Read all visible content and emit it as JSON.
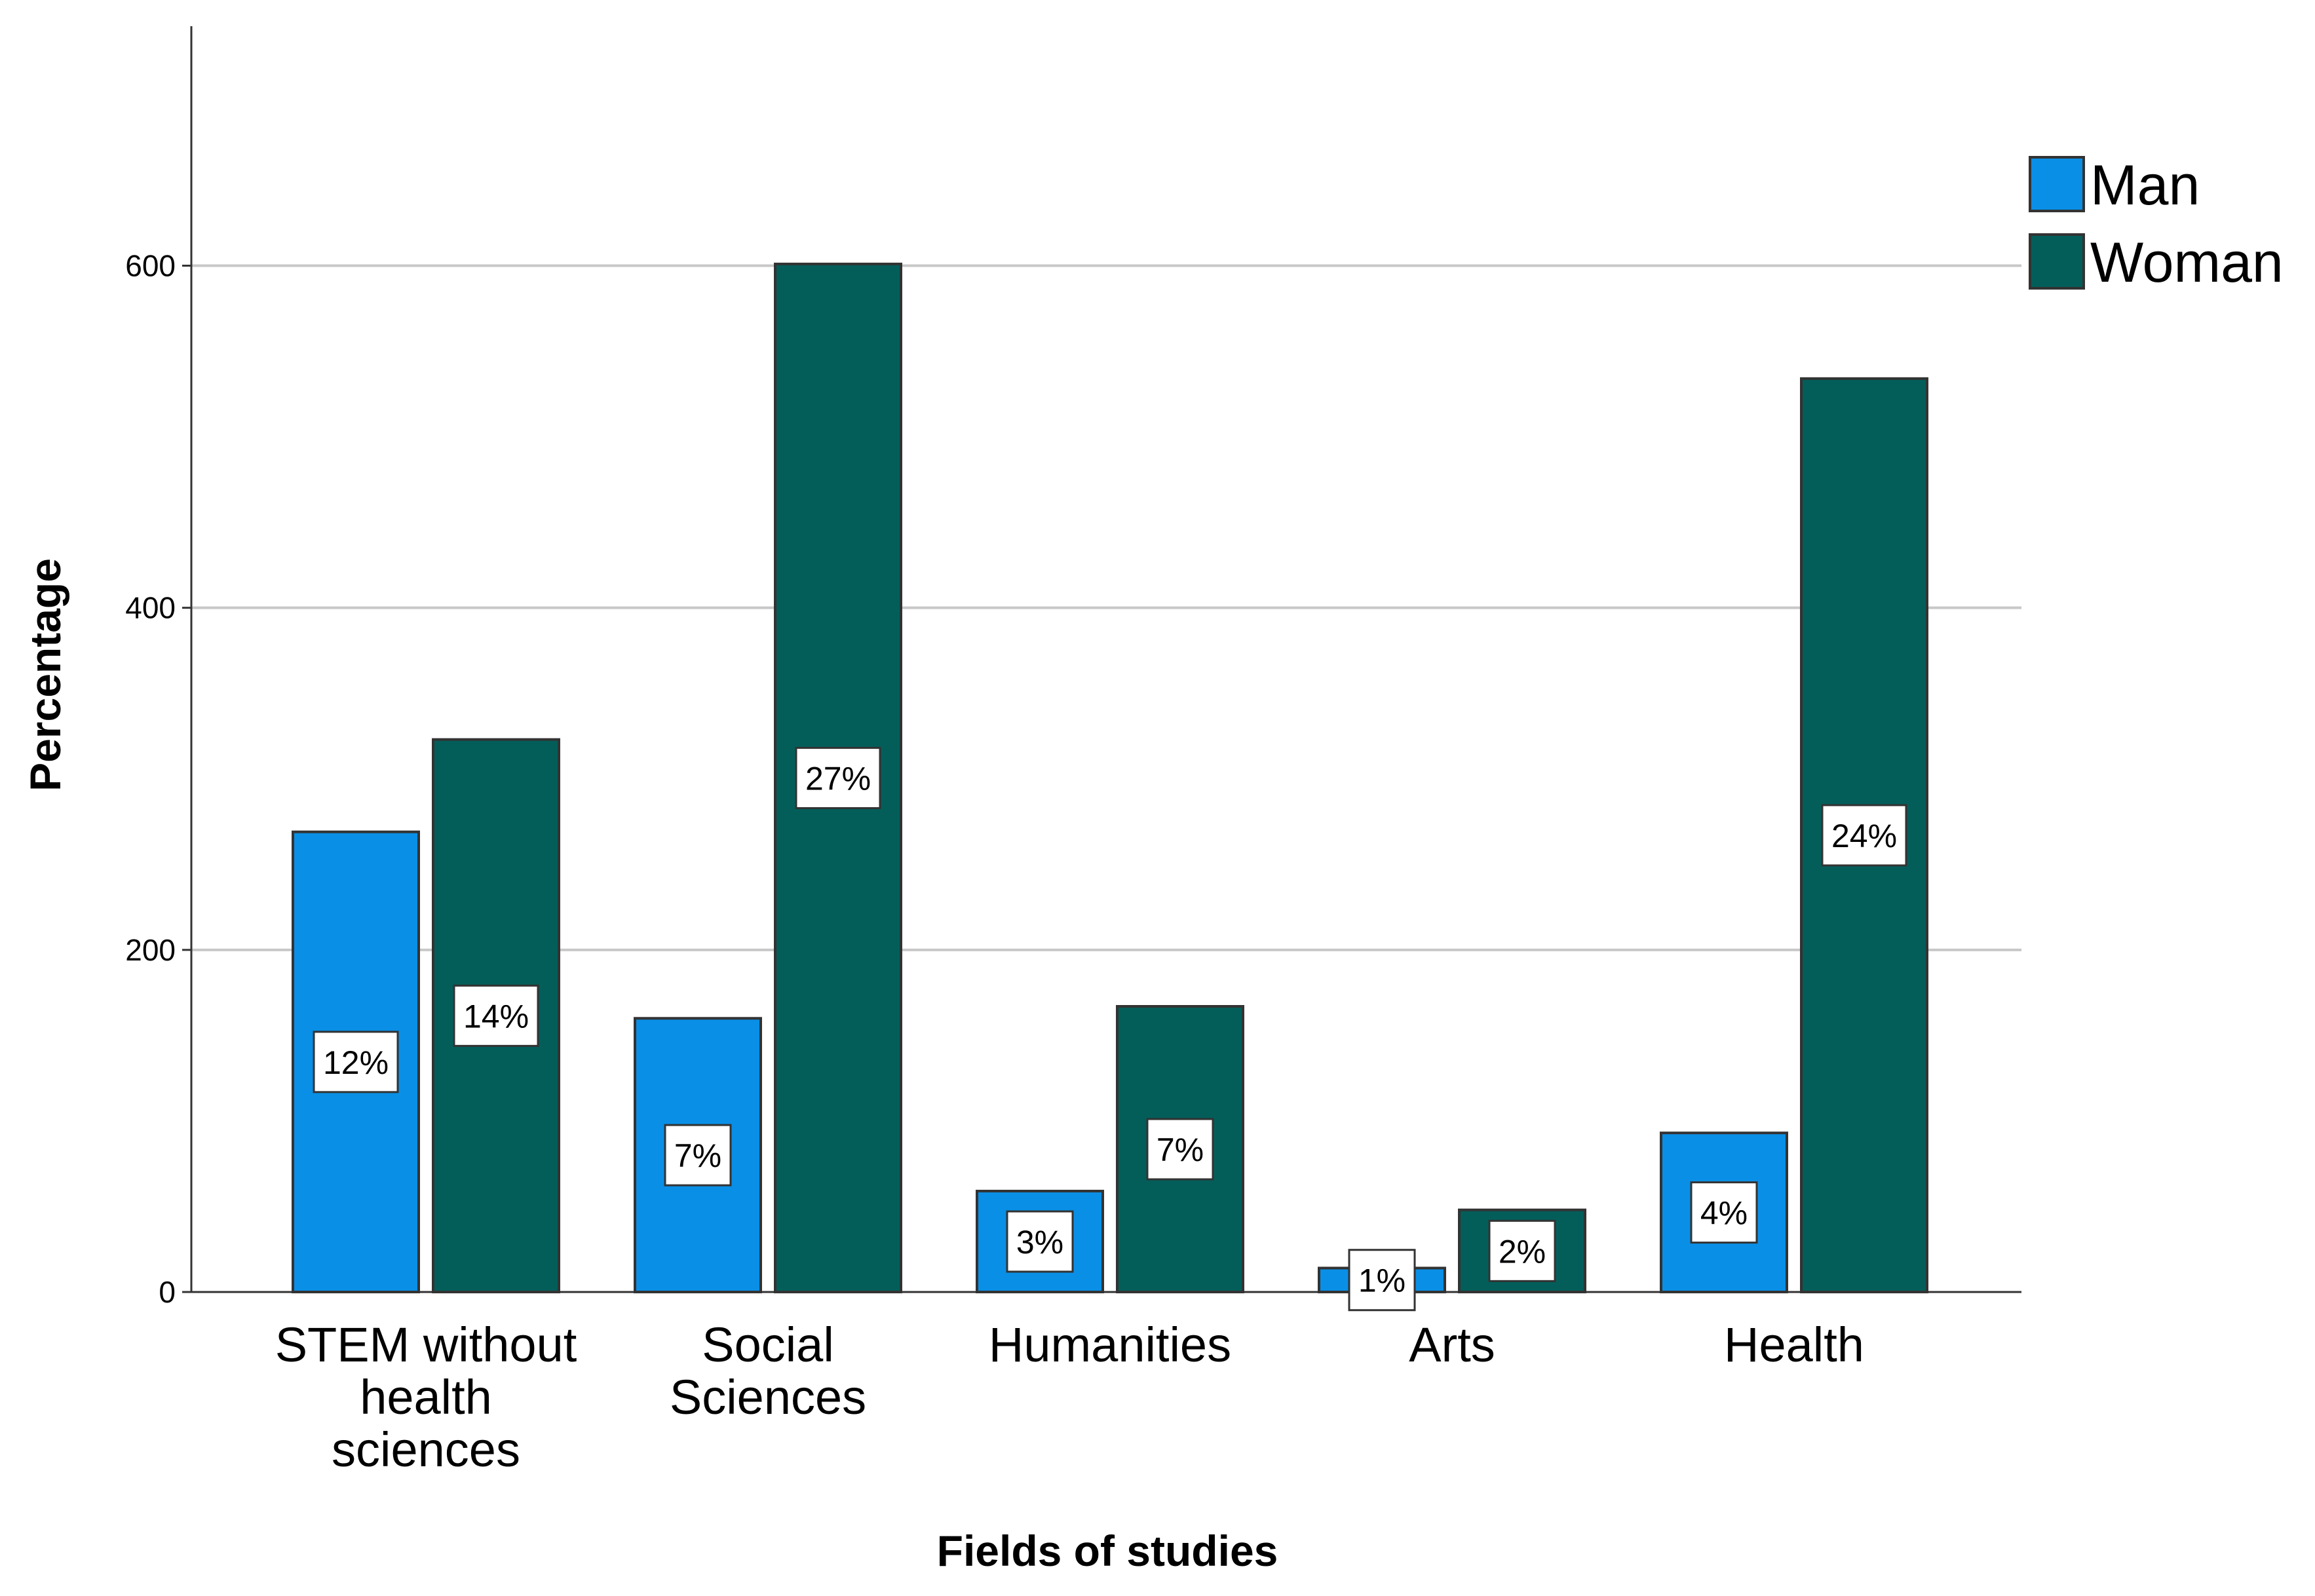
{
  "chart_data": {
    "type": "bar",
    "title": "",
    "xlabel": "Fields of studies",
    "ylabel": "Percentage",
    "ylim": [
      0,
      740
    ],
    "yticks": [
      0,
      200,
      400,
      600
    ],
    "grid": true,
    "legend_position": "top-right",
    "categories": [
      [
        "STEM without",
        "health",
        "sciences"
      ],
      [
        "Social",
        "Sciences"
      ],
      [
        "Humanities"
      ],
      [
        "Arts"
      ],
      [
        "Health"
      ]
    ],
    "series": [
      {
        "name": "Man",
        "color": "#0a8fe6",
        "values": [
          269,
          160,
          59,
          14,
          93
        ],
        "labels": [
          "12%",
          "7%",
          "3%",
          "1%",
          "4%"
        ]
      },
      {
        "name": "Woman",
        "color": "#035e5a",
        "values": [
          323,
          601,
          167,
          48,
          534
        ],
        "labels": [
          "14%",
          "27%",
          "7%",
          "2%",
          "24%"
        ]
      }
    ]
  }
}
